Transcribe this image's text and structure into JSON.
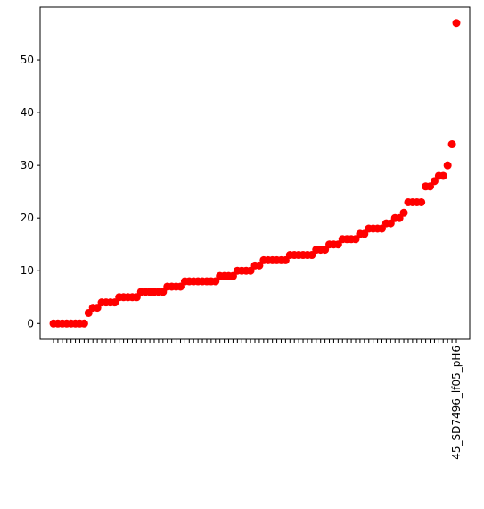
{
  "chart_data": {
    "type": "scatter",
    "color": "#ff0000",
    "categories": [
      null,
      null,
      null,
      null,
      null,
      null,
      null,
      null,
      null,
      null,
      null,
      null,
      null,
      null,
      null,
      null,
      null,
      null,
      null,
      null,
      null,
      null,
      null,
      null,
      null,
      null,
      null,
      null,
      null,
      null,
      null,
      null,
      null,
      null,
      null,
      null,
      null,
      null,
      null,
      null,
      null,
      null,
      null,
      null,
      null,
      null,
      null,
      null,
      null,
      null,
      null,
      null,
      null,
      null,
      null,
      null,
      null,
      null,
      null,
      null,
      null,
      null,
      null,
      null,
      null,
      null,
      null,
      null,
      null,
      null,
      null,
      null,
      null,
      null,
      null,
      null,
      null,
      null,
      null,
      null,
      null,
      null,
      null,
      null,
      null,
      null,
      null,
      null,
      null,
      null,
      null,
      null,
      "45_SD7496_lf05_pH6"
    ],
    "values": [
      0,
      0,
      0,
      0,
      0,
      0,
      0,
      0,
      2,
      3,
      3,
      4,
      4,
      4,
      4,
      5,
      5,
      5,
      5,
      5,
      6,
      6,
      6,
      6,
      6,
      6,
      7,
      7,
      7,
      7,
      8,
      8,
      8,
      8,
      8,
      8,
      8,
      8,
      9,
      9,
      9,
      9,
      10,
      10,
      10,
      10,
      11,
      11,
      12,
      12,
      12,
      12,
      12,
      12,
      13,
      13,
      13,
      13,
      13,
      13,
      14,
      14,
      14,
      15,
      15,
      15,
      16,
      16,
      16,
      16,
      17,
      17,
      18,
      18,
      18,
      18,
      19,
      19,
      20,
      20,
      21,
      23,
      23,
      23,
      23,
      26,
      26,
      27,
      28,
      28,
      30,
      34,
      57
    ],
    "ylim": [
      -3,
      60
    ],
    "yticks": [
      0,
      10,
      20,
      30,
      40,
      50
    ]
  }
}
